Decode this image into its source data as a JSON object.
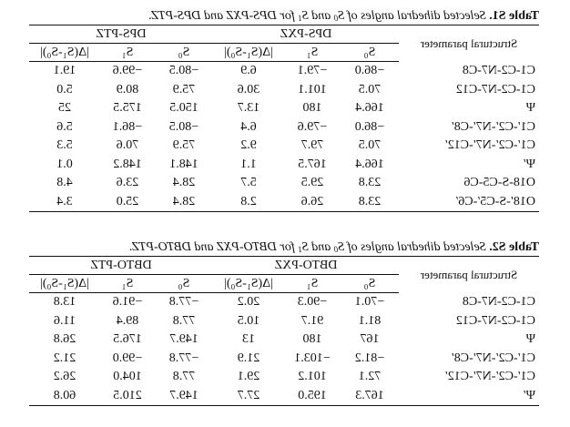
{
  "tables": [
    {
      "caption_label": "Table S1.",
      "caption_text": " Selected dihedral angles of S",
      "caption_mid": " and S",
      "caption_end": " for DPS-PXZ and DPS-PTZ.",
      "param_header": "Structural parameter",
      "groups": [
        "DPS-PXZ",
        "DPS-PTZ"
      ],
      "columns": [
        "S₀",
        "S₁",
        "|Δ(S₁-S₀)|",
        "S₀",
        "S₁",
        "|Δ(S₁-S₀)|"
      ],
      "rows": [
        [
          "C1-C2-N7-C8",
          "−86.0",
          "−79.1",
          "6.9",
          "−80.5",
          "−99.6",
          "19.1"
        ],
        [
          "C1-C2-N7-C12",
          "70.5",
          "101.1",
          "30.6",
          "75.9",
          "80.9",
          "5.0"
        ],
        [
          "Ψ",
          "166.4",
          "180",
          "13.7",
          "150.5",
          "175.5",
          "25"
        ],
        [
          "C1′-C2′-N7′-C8′",
          "−86.0",
          "−79.6",
          "6.4",
          "−80.5",
          "−86.1",
          "5.6"
        ],
        [
          "C1′-C2′-N7′-C12′",
          "70.5",
          "79.7",
          "9.2",
          "75.9",
          "70.6",
          "5.3"
        ],
        [
          "Ψ′",
          "166.4",
          "167.5",
          "1.1",
          "148.1",
          "148.2",
          "0.1"
        ],
        [
          "O18-S-C5-C6",
          "23.8",
          "29.5",
          "5.7",
          "28.4",
          "23.6",
          "4.8"
        ],
        [
          "O18′-S-C5′-C6′",
          "23.8",
          "26.6",
          "2.8",
          "28.4",
          "25.0",
          "3.4"
        ]
      ]
    },
    {
      "caption_label": "Table S2.",
      "caption_text": " Selected dihedral angles of S",
      "caption_mid": " and S",
      "caption_end": " for DBTO-PXZ and DBTO-PTZ.",
      "param_header": "Structural parameter",
      "groups": [
        "DBTO-PXZ",
        "DBTO-PTZ"
      ],
      "columns": [
        "S₀",
        "S₁",
        "|Δ(S₁-S₀)|",
        "S₀",
        "S₁",
        "|Δ(S₁-S₀)|"
      ],
      "rows": [
        [
          "C1-C2-N7-C8",
          "−70.1",
          "−90.3",
          "20.2",
          "−77.8",
          "−91.6",
          "13.8"
        ],
        [
          "C1-C2-N7-C12",
          "81.1",
          "91.7",
          "10.5",
          "77.8",
          "89.4",
          "11.6"
        ],
        [
          "Ψ",
          "167",
          "180",
          "13",
          "149.7",
          "176.5",
          "26.8"
        ],
        [
          "C1′-C2′-N7′-C8′",
          "−81.2",
          "−103.1",
          "21.9",
          "−77.8",
          "−99.0",
          "21.2"
        ],
        [
          "C1′-C2′-N7′-C12′",
          "72.1",
          "101.2",
          "29.1",
          "77.8",
          "104.0",
          "26.2"
        ],
        [
          "Ψ′",
          "167.3",
          "195.0",
          "27.7",
          "149.7",
          "210.5",
          "60.8"
        ]
      ]
    }
  ]
}
